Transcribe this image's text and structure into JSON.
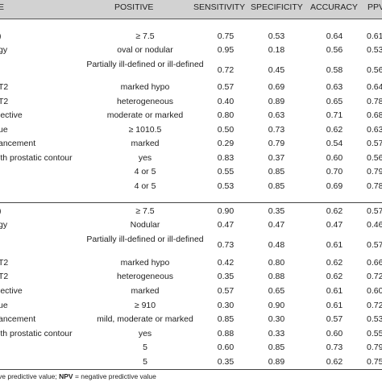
{
  "header": {
    "col0": "E",
    "col1": "POSITIVE",
    "col2": "SENSITIVITY",
    "col3": "SPECIFICITY",
    "col4": "ACCURACY",
    "col5": "PPV"
  },
  "section1": [
    {
      "label": ")",
      "positive": "≥ 7.5",
      "sens": "0.75",
      "spec": "0.53",
      "acc": "0.64",
      "ppv": "0.61"
    },
    {
      "label": "gy",
      "positive": "oval or nodular",
      "sens": "0.95",
      "spec": "0.18",
      "acc": "0.56",
      "ppv": "0.53"
    },
    {
      "label": "",
      "positive": "Partially ill-defined or ill-defined",
      "sens": "0.72",
      "spec": "0.45",
      "acc": "0.58",
      "ppv": "0.56"
    },
    {
      "label": "T2",
      "positive": "marked hypo",
      "sens": "0.57",
      "spec": "0.69",
      "acc": "0.63",
      "ppv": "0.64"
    },
    {
      "label": "T2",
      "positive": "heterogeneous",
      "sens": "0.40",
      "spec": "0.89",
      "acc": "0.65",
      "ppv": "0.78"
    },
    {
      "label": "jective",
      "positive": "moderate or marked",
      "sens": "0.80",
      "spec": "0.63",
      "acc": "0.71",
      "ppv": "0.68"
    },
    {
      "label": "ue",
      "positive": "≥ 1010.5",
      "sens": "0.50",
      "spec": "0.73",
      "acc": "0.62",
      "ppv": "0.63"
    },
    {
      "label": "ancement",
      "positive": "marked",
      "sens": "0.29",
      "spec": "0.79",
      "acc": "0.54",
      "ppv": "0.57"
    },
    {
      "label": "ith prostatic contour",
      "positive": "yes",
      "sens": "0.83",
      "spec": "0.37",
      "acc": "0.60",
      "ppv": "0.56"
    },
    {
      "label": "",
      "positive": "4 or 5",
      "sens": "0.55",
      "spec": "0.85",
      "acc": "0.70",
      "ppv": "0.79"
    },
    {
      "label": "",
      "positive": "4 or 5",
      "sens": "0.53",
      "spec": "0.85",
      "acc": "0.69",
      "ppv": "0.78"
    }
  ],
  "section2": [
    {
      "label": ")",
      "positive": "≥ 7.5",
      "sens": "0.90",
      "spec": "0.35",
      "acc": "0.62",
      "ppv": "0.57"
    },
    {
      "label": "gy",
      "positive": "Nodular",
      "sens": "0.47",
      "spec": "0.47",
      "acc": "0.47",
      "ppv": "0.46"
    },
    {
      "label": "",
      "positive": "Partially ill-defined or ill-defined",
      "sens": "0.73",
      "spec": "0.48",
      "acc": "0.61",
      "ppv": "0.57"
    },
    {
      "label": "T2",
      "positive": "marked hypo",
      "sens": "0.42",
      "spec": "0.80",
      "acc": "0.62",
      "ppv": "0.66"
    },
    {
      "label": "T2",
      "positive": "heterogeneous",
      "sens": "0.35",
      "spec": "0.88",
      "acc": "0.62",
      "ppv": "0.72"
    },
    {
      "label": "jective",
      "positive": "marked",
      "sens": "0.57",
      "spec": "0.65",
      "acc": "0.61",
      "ppv": "0.60"
    },
    {
      "label": "ue",
      "positive": "≥ 910",
      "sens": "0.30",
      "spec": "0.90",
      "acc": "0.61",
      "ppv": "0.72"
    },
    {
      "label": "ancement",
      "positive": "mild, moderate or marked",
      "sens": "0.85",
      "spec": "0.30",
      "acc": "0.57",
      "ppv": "0.53"
    },
    {
      "label": "ith prostatic contour",
      "positive": "yes",
      "sens": "0.88",
      "spec": "0.33",
      "acc": "0.60",
      "ppv": "0.55"
    },
    {
      "label": "",
      "positive": "5",
      "sens": "0.60",
      "spec": "0.85",
      "acc": "0.73",
      "ppv": "0.79"
    },
    {
      "label": "",
      "positive": "5",
      "sens": "0.35",
      "spec": "0.89",
      "acc": "0.62",
      "ppv": "0.75"
    }
  ],
  "footer": {
    "prefix": "ve predictive value; ",
    "npv_abbr": "NPV",
    "npv_def": " = negative predictive value"
  }
}
